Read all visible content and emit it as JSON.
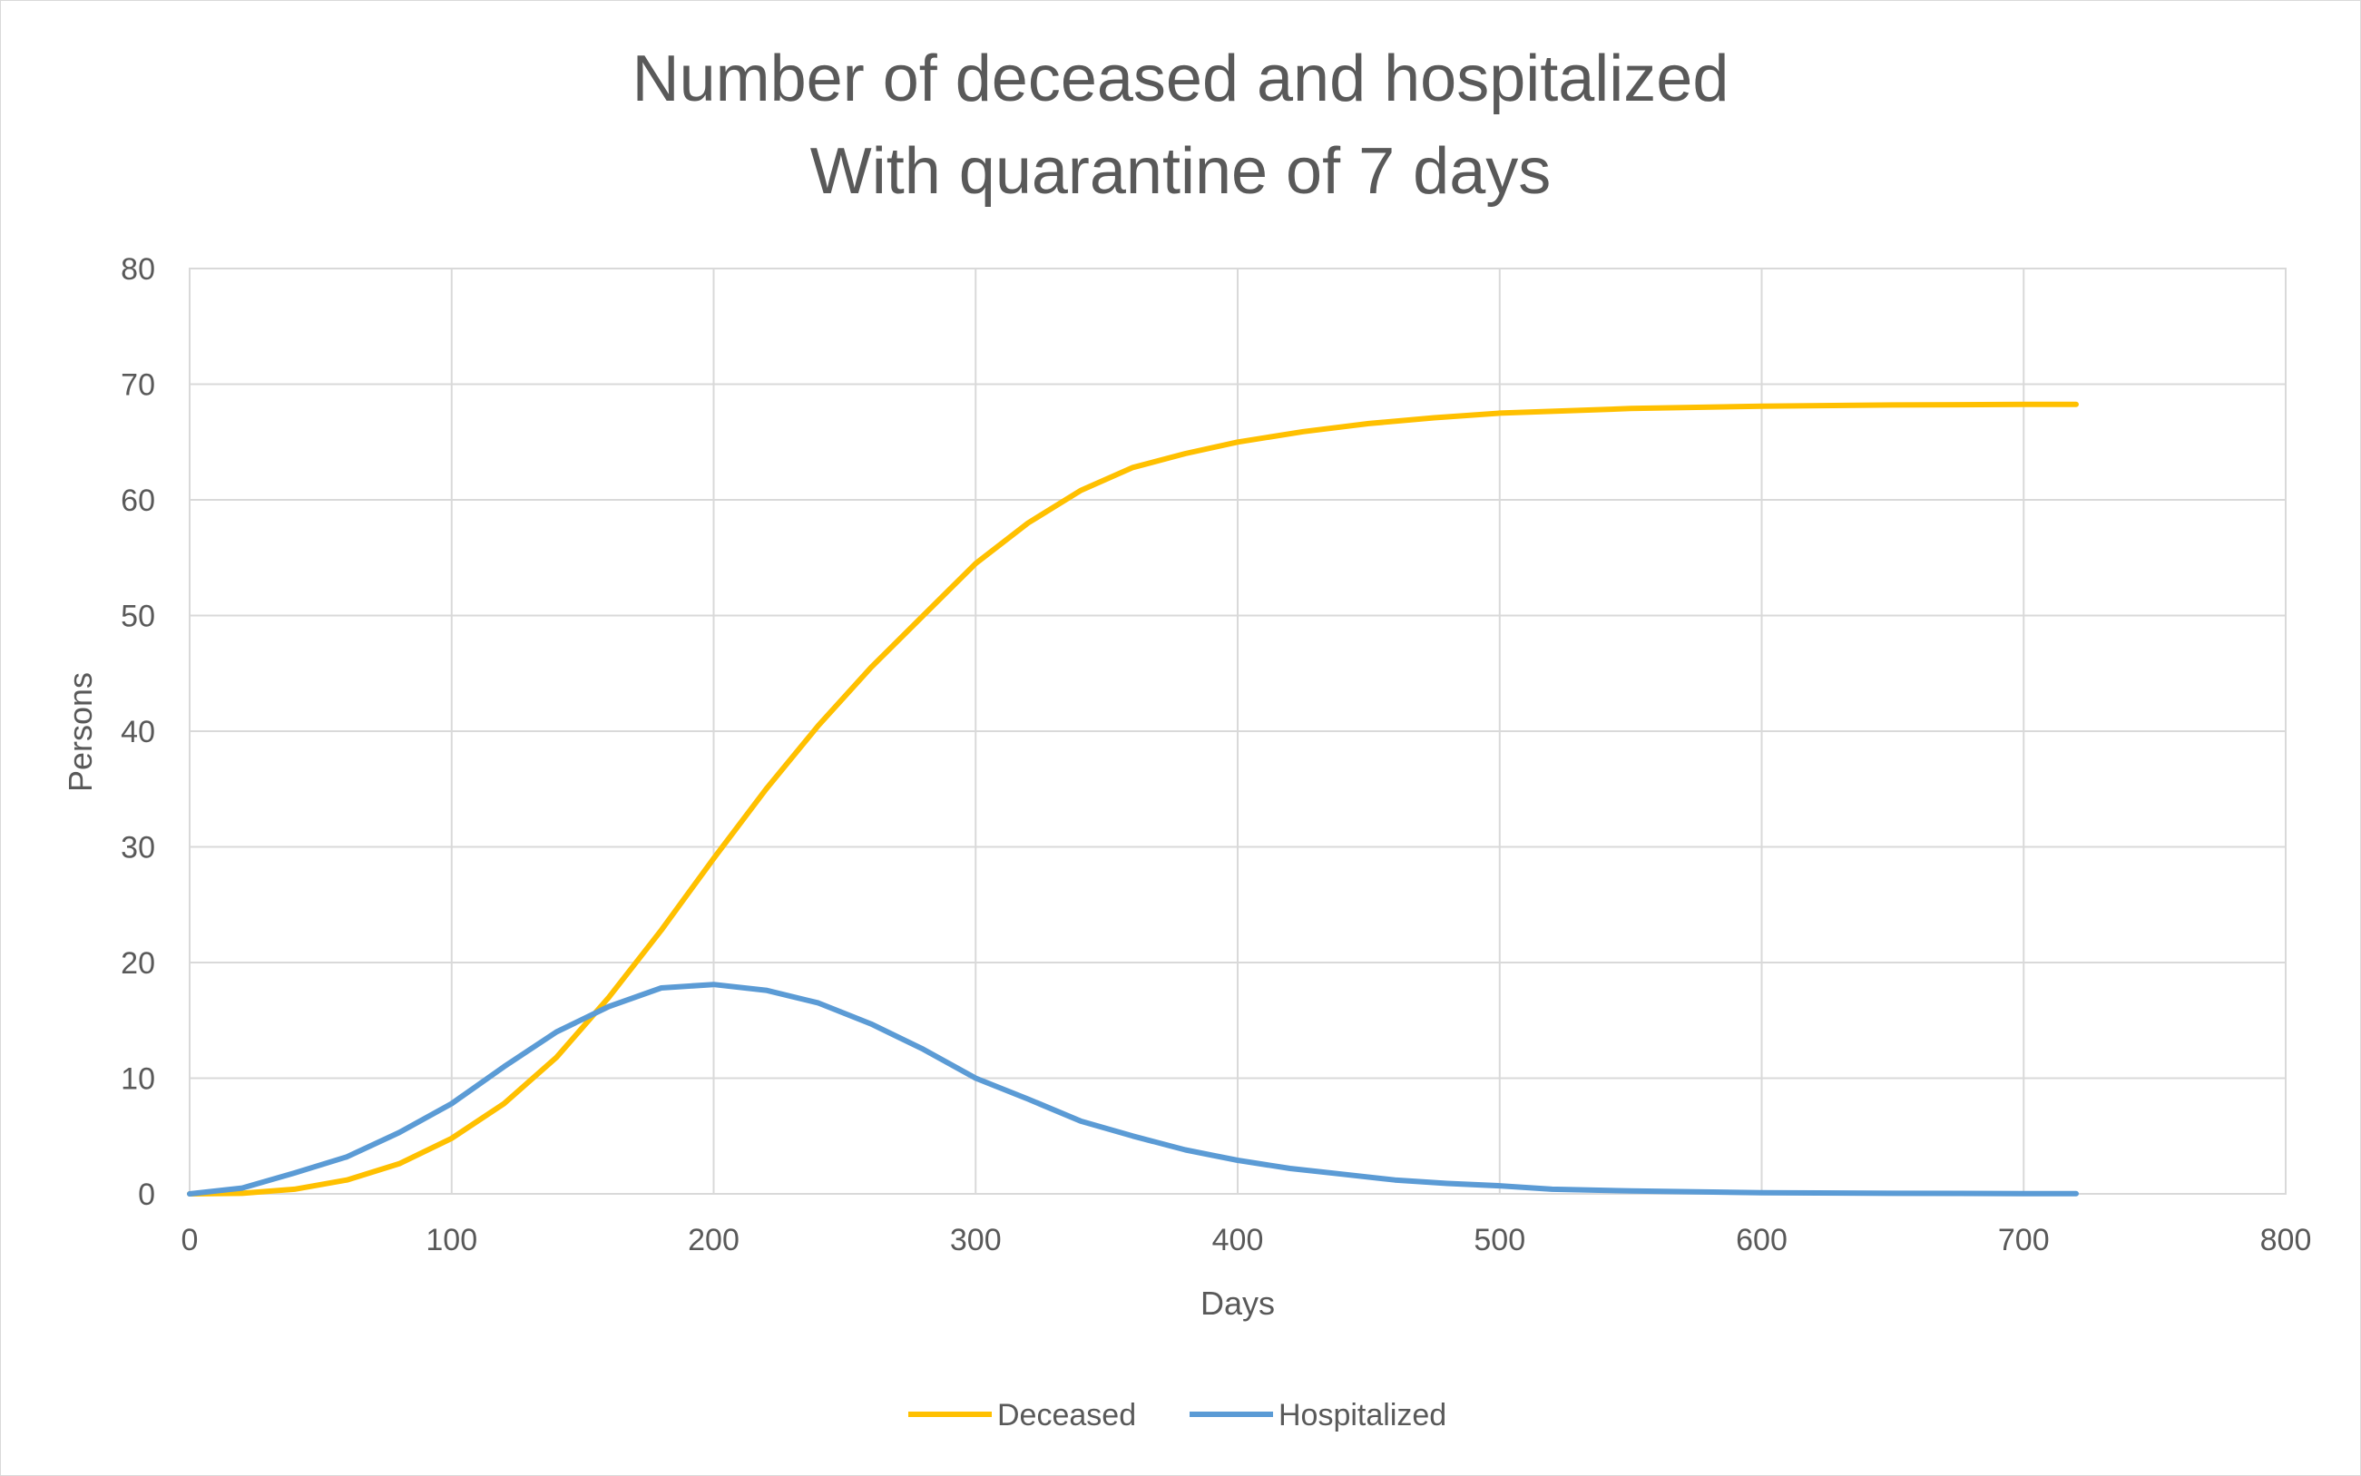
{
  "chart_data": {
    "type": "line",
    "title": [
      "Number of deceased and hospitalized",
      "With quarantine of 7 days"
    ],
    "xlabel": "Days",
    "ylabel": "Persons",
    "xlim": [
      0,
      800
    ],
    "ylim": [
      0,
      80
    ],
    "xticks": [
      0,
      100,
      200,
      300,
      400,
      500,
      600,
      700,
      800
    ],
    "yticks": [
      0,
      10,
      20,
      30,
      40,
      50,
      60,
      70,
      80
    ],
    "grid": true,
    "legend": "bottom",
    "series": [
      {
        "name": "Deceased",
        "color": "#FFC000",
        "points": [
          [
            0,
            0
          ],
          [
            20,
            0.05
          ],
          [
            40,
            0.4
          ],
          [
            60,
            1.2
          ],
          [
            80,
            2.6
          ],
          [
            100,
            4.8
          ],
          [
            120,
            7.8
          ],
          [
            140,
            11.8
          ],
          [
            160,
            17
          ],
          [
            180,
            22.8
          ],
          [
            200,
            29
          ],
          [
            220,
            35
          ],
          [
            240,
            40.5
          ],
          [
            260,
            45.5
          ],
          [
            280,
            50
          ],
          [
            300,
            54.5
          ],
          [
            320,
            58
          ],
          [
            340,
            60.8
          ],
          [
            360,
            62.8
          ],
          [
            380,
            64
          ],
          [
            400,
            65
          ],
          [
            425,
            65.9
          ],
          [
            450,
            66.6
          ],
          [
            475,
            67.1
          ],
          [
            500,
            67.5
          ],
          [
            550,
            67.9
          ],
          [
            600,
            68.1
          ],
          [
            650,
            68.2
          ],
          [
            700,
            68.25
          ],
          [
            720,
            68.25
          ]
        ]
      },
      {
        "name": "Hospitalized",
        "color": "#5B9BD5",
        "points": [
          [
            0,
            0
          ],
          [
            20,
            0.5
          ],
          [
            40,
            1.8
          ],
          [
            60,
            3.2
          ],
          [
            80,
            5.3
          ],
          [
            100,
            7.8
          ],
          [
            120,
            11
          ],
          [
            140,
            14
          ],
          [
            160,
            16.2
          ],
          [
            180,
            17.8
          ],
          [
            200,
            18.1
          ],
          [
            220,
            17.6
          ],
          [
            240,
            16.5
          ],
          [
            260,
            14.7
          ],
          [
            280,
            12.5
          ],
          [
            300,
            10
          ],
          [
            320,
            8.2
          ],
          [
            340,
            6.3
          ],
          [
            360,
            5
          ],
          [
            380,
            3.8
          ],
          [
            400,
            2.9
          ],
          [
            420,
            2.2
          ],
          [
            440,
            1.7
          ],
          [
            460,
            1.2
          ],
          [
            480,
            0.9
          ],
          [
            500,
            0.7
          ],
          [
            520,
            0.4
          ],
          [
            550,
            0.25
          ],
          [
            600,
            0.1
          ],
          [
            650,
            0.05
          ],
          [
            700,
            0.02
          ],
          [
            720,
            0.02
          ]
        ]
      }
    ]
  }
}
